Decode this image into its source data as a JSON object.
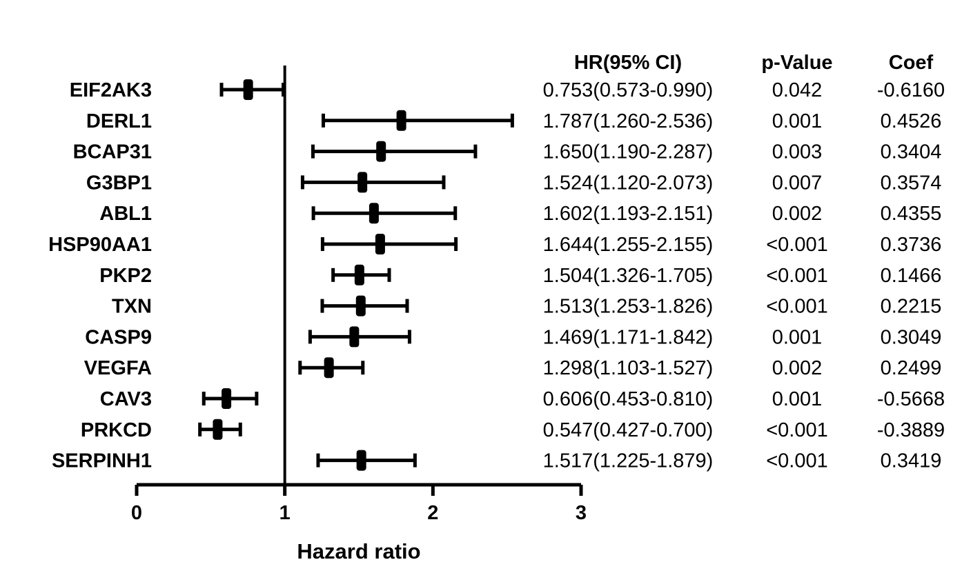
{
  "chart_data": {
    "type": "forest",
    "xlabel": "Hazard ratio",
    "xlim": [
      0,
      3
    ],
    "xticks": [
      0,
      1,
      2,
      3
    ],
    "reference_line": 1,
    "columns": [
      "HR(95% CI)",
      "p-Value",
      "Coef"
    ],
    "rows": [
      {
        "gene": "EIF2AK3",
        "hr": 0.753,
        "lo": 0.573,
        "hi": 0.99,
        "hr_ci": "0.753(0.573-0.990)",
        "p": "0.042",
        "coef": "-0.6160"
      },
      {
        "gene": "DERL1",
        "hr": 1.787,
        "lo": 1.26,
        "hi": 2.536,
        "hr_ci": "1.787(1.260-2.536)",
        "p": "0.001",
        "coef": "0.4526"
      },
      {
        "gene": "BCAP31",
        "hr": 1.65,
        "lo": 1.19,
        "hi": 2.287,
        "hr_ci": "1.650(1.190-2.287)",
        "p": "0.003",
        "coef": "0.3404"
      },
      {
        "gene": "G3BP1",
        "hr": 1.524,
        "lo": 1.12,
        "hi": 2.073,
        "hr_ci": "1.524(1.120-2.073)",
        "p": "0.007",
        "coef": "0.3574"
      },
      {
        "gene": "ABL1",
        "hr": 1.602,
        "lo": 1.193,
        "hi": 2.151,
        "hr_ci": "1.602(1.193-2.151)",
        "p": "0.002",
        "coef": "0.4355"
      },
      {
        "gene": "HSP90AA1",
        "hr": 1.644,
        "lo": 1.255,
        "hi": 2.155,
        "hr_ci": "1.644(1.255-2.155)",
        "p": "<0.001",
        "coef": "0.3736"
      },
      {
        "gene": "PKP2",
        "hr": 1.504,
        "lo": 1.326,
        "hi": 1.705,
        "hr_ci": "1.504(1.326-1.705)",
        "p": "<0.001",
        "coef": "0.1466"
      },
      {
        "gene": "TXN",
        "hr": 1.513,
        "lo": 1.253,
        "hi": 1.826,
        "hr_ci": "1.513(1.253-1.826)",
        "p": "<0.001",
        "coef": "0.2215"
      },
      {
        "gene": "CASP9",
        "hr": 1.469,
        "lo": 1.171,
        "hi": 1.842,
        "hr_ci": "1.469(1.171-1.842)",
        "p": "0.001",
        "coef": "0.3049"
      },
      {
        "gene": "VEGFA",
        "hr": 1.298,
        "lo": 1.103,
        "hi": 1.527,
        "hr_ci": "1.298(1.103-1.527)",
        "p": "0.002",
        "coef": "0.2499"
      },
      {
        "gene": "CAV3",
        "hr": 0.606,
        "lo": 0.453,
        "hi": 0.81,
        "hr_ci": "0.606(0.453-0.810)",
        "p": "0.001",
        "coef": "-0.5668"
      },
      {
        "gene": "PRKCD",
        "hr": 0.547,
        "lo": 0.427,
        "hi": 0.7,
        "hr_ci": "0.547(0.427-0.700)",
        "p": "<0.001",
        "coef": "-0.3889"
      },
      {
        "gene": "SERPINH1",
        "hr": 1.517,
        "lo": 1.225,
        "hi": 1.879,
        "hr_ci": "1.517(1.225-1.879)",
        "p": "<0.001",
        "coef": "0.3419"
      }
    ],
    "color": "#000000"
  }
}
